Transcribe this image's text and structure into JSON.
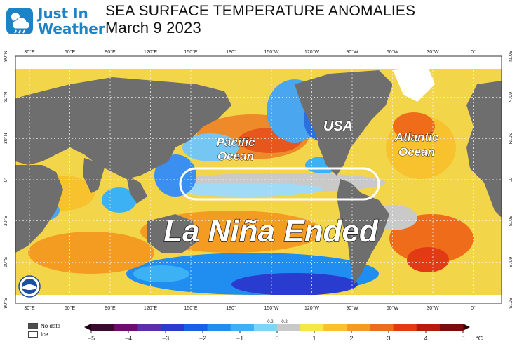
{
  "header": {
    "logo_line1": "Just In",
    "logo_line2": "Weather",
    "title": "SEA SURFACE TEMPERATURE ANOMALIES",
    "date": "March 9 2023"
  },
  "map": {
    "top_lon_labels": [
      "30°E",
      "60°E",
      "90°E",
      "120°E",
      "150°E",
      "180°",
      "150°W",
      "120°W",
      "90°W",
      "60°W",
      "30°W",
      "0°"
    ],
    "bottom_lon_labels": [
      "30°E",
      "60°E",
      "90°E",
      "120°E",
      "150°E",
      "180°",
      "150°W",
      "120°W",
      "90°W",
      "60°W",
      "30°W",
      "0°"
    ],
    "left_lat_labels": [
      "90°N",
      "60°N",
      "30°N",
      "0°",
      "30°S",
      "60°S",
      "90°S"
    ],
    "right_lat_labels": [
      "90°N",
      "60°N",
      "30°N",
      "0°",
      "30°S",
      "60°S",
      "90°S"
    ],
    "annotations": {
      "pacific": "Pacific\nOcean",
      "atlantic": "Atlantic\nOcean",
      "usa": "USA",
      "headline": "La Niña Ended"
    }
  },
  "legend": {
    "no_data": "No data",
    "ice": "Ice",
    "no_data_color": "#4d4d4d",
    "ice_color": "#ffffff",
    "unit": "°C",
    "ticks": [
      "−5",
      "−4",
      "−3",
      "−2",
      "−1",
      "0",
      "1",
      "2",
      "3",
      "4",
      "5"
    ],
    "small_ticks": [
      "-0.2",
      "0.2"
    ],
    "colors": [
      "#3b0a2e",
      "#6a0f6e",
      "#5a2fa8",
      "#2a3bd0",
      "#1b5ee8",
      "#1f8ef0",
      "#3cb2f5",
      "#7fd4f8",
      "#c9c9c9",
      "#f6e64a",
      "#f7c22d",
      "#f49b22",
      "#ee6c1a",
      "#e23a14",
      "#b81a10",
      "#7a0c0c"
    ]
  }
}
